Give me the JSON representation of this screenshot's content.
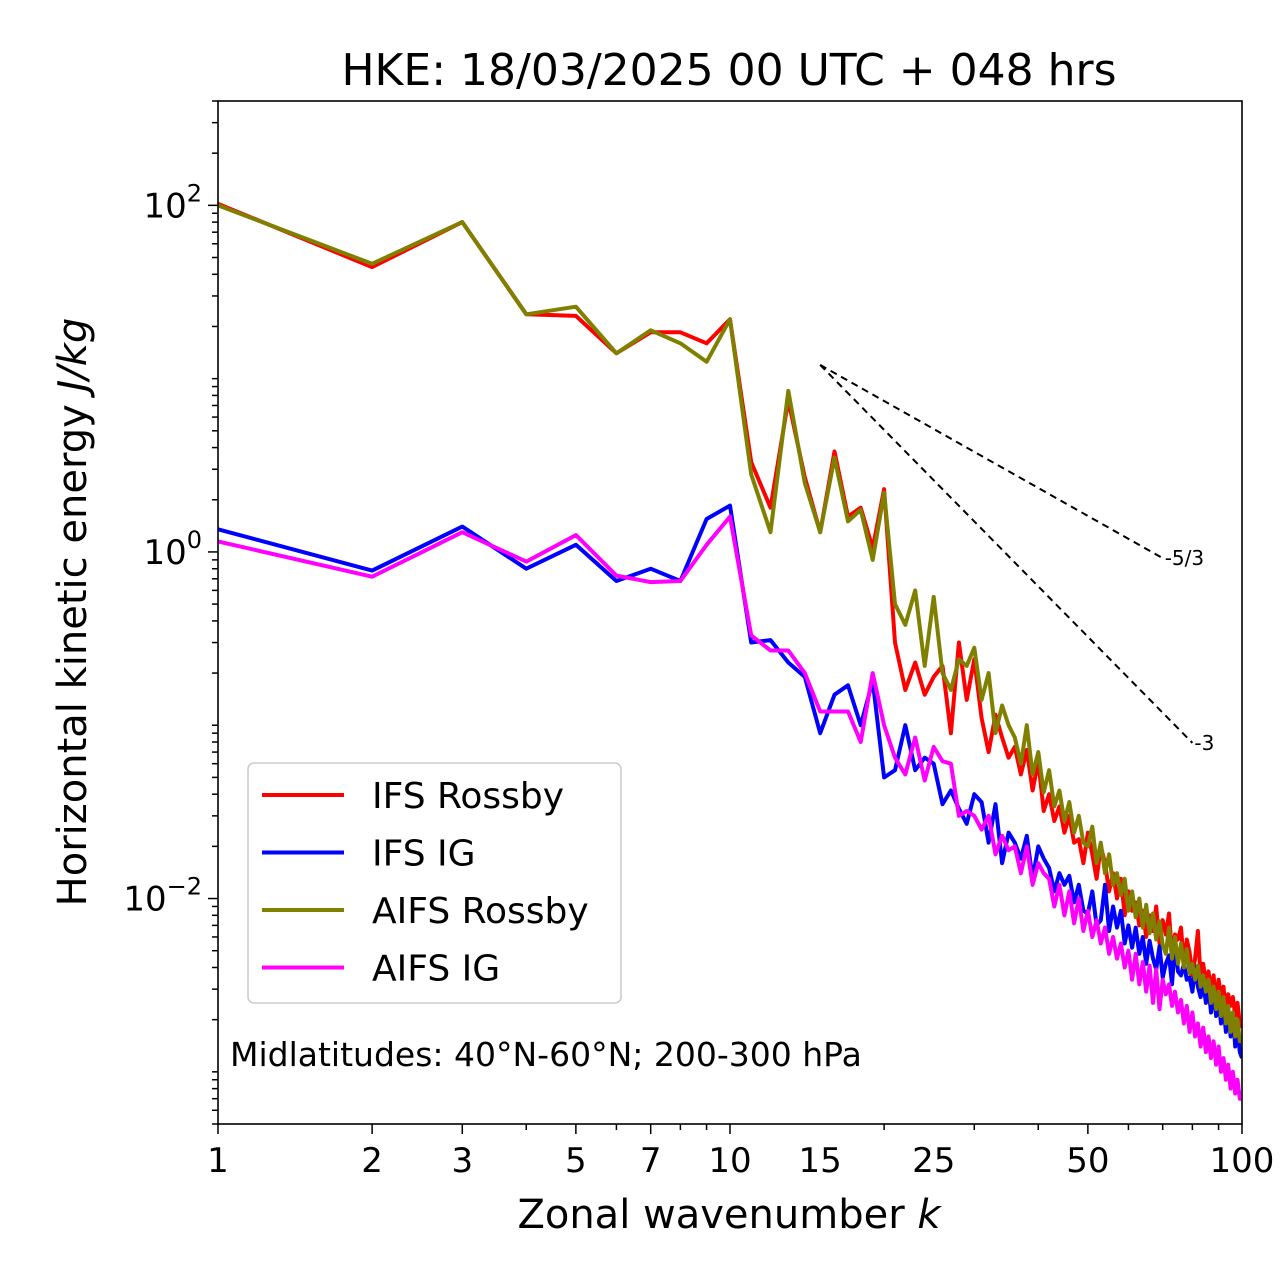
{
  "chart_data": {
    "type": "line",
    "title": "HKE: 18/03/2025 00 UTC + 048 hrs",
    "xlabel": "Zonal wavenumber ",
    "xlabel_italic": "k",
    "ylabel": "Horizontal kinetic energy ",
    "ylabel_italic": "J/kg",
    "xscale": "log",
    "yscale": "log",
    "xlim": [
      1,
      100
    ],
    "ylim": [
      0.0005,
      400
    ],
    "grid": false,
    "legend_position": "lower-left",
    "x_ticks": [
      {
        "value": 1,
        "label": "1"
      },
      {
        "value": 2,
        "label": "2"
      },
      {
        "value": 3,
        "label": "3"
      },
      {
        "value": 5,
        "label": "5"
      },
      {
        "value": 7,
        "label": "7"
      },
      {
        "value": 10,
        "label": "10"
      },
      {
        "value": 15,
        "label": "15"
      },
      {
        "value": 25,
        "label": "25"
      },
      {
        "value": 50,
        "label": "50"
      },
      {
        "value": 100,
        "label": "100"
      }
    ],
    "y_ticks": [
      {
        "value": 100,
        "base": "10",
        "exp": "2"
      },
      {
        "value": 1,
        "base": "10",
        "exp": "0"
      },
      {
        "value": 0.01,
        "base": "10",
        "exp": "−2"
      }
    ],
    "annotation": "Midlatitudes: 40°N-60°N; 200-300 hPa",
    "reference_lines": [
      {
        "label": "-5/3",
        "slope": -1.6667,
        "x": [
          15,
          70
        ],
        "y0": 12
      },
      {
        "label": "-3",
        "slope": -3,
        "x": [
          15,
          80
        ],
        "y0": 12
      }
    ],
    "series": [
      {
        "name": "IFS Rossby",
        "color": "#ff0000",
        "x": [
          1,
          2,
          3,
          4,
          5,
          6,
          7,
          8,
          9,
          10,
          11,
          12,
          13,
          14,
          15,
          16,
          17,
          18,
          19,
          20,
          21,
          22,
          23,
          24,
          25,
          26,
          27,
          28,
          29,
          30,
          31,
          32,
          33,
          34,
          35,
          36,
          37,
          38,
          39,
          40,
          41,
          42,
          43,
          44,
          45,
          46,
          47,
          48,
          49,
          50,
          51,
          52,
          53,
          54,
          55,
          56,
          57,
          58,
          59,
          60,
          61,
          62,
          63,
          64,
          65,
          66,
          67,
          68,
          69,
          70,
          71,
          72,
          73,
          74,
          75,
          76,
          77,
          78,
          79,
          80,
          81,
          82,
          83,
          84,
          85,
          86,
          87,
          88,
          89,
          90,
          91,
          92,
          93,
          94,
          95,
          96,
          97,
          98,
          99,
          100
        ],
        "y": [
          102,
          44,
          80,
          23.5,
          23,
          14,
          18.5,
          18.5,
          16,
          22,
          3.3,
          1.8,
          7.5,
          2.7,
          1.3,
          3.8,
          1.6,
          1.8,
          1.05,
          2.3,
          0.3,
          0.16,
          0.23,
          0.15,
          0.19,
          0.22,
          0.09,
          0.3,
          0.14,
          0.24,
          0.11,
          0.07,
          0.115,
          0.085,
          0.065,
          0.075,
          0.052,
          0.072,
          0.042,
          0.062,
          0.032,
          0.04,
          0.028,
          0.034,
          0.024,
          0.03,
          0.021,
          0.022,
          0.016,
          0.024,
          0.018,
          0.013,
          0.02,
          0.016,
          0.011,
          0.014,
          0.01,
          0.013,
          0.008,
          0.011,
          0.0085,
          0.0095,
          0.007,
          0.0085,
          0.006,
          0.008,
          0.0065,
          0.009,
          0.0055,
          0.0075,
          0.0062,
          0.0082,
          0.0048,
          0.0062,
          0.0058,
          0.0068,
          0.0042,
          0.0058,
          0.0049,
          0.0036,
          0.0045,
          0.0065,
          0.0035,
          0.0042,
          0.0032,
          0.0038,
          0.0029,
          0.0036,
          0.0025,
          0.0034,
          0.0027,
          0.0031,
          0.0022,
          0.0028,
          0.0024,
          0.0027,
          0.0021,
          0.0025,
          0.0019,
          0.0018
        ]
      },
      {
        "name": "IFS IG",
        "color": "#0000ff",
        "x": [
          1,
          2,
          3,
          4,
          5,
          6,
          7,
          8,
          9,
          10,
          11,
          12,
          13,
          14,
          15,
          16,
          17,
          18,
          19,
          20,
          21,
          22,
          23,
          24,
          25,
          26,
          27,
          28,
          29,
          30,
          31,
          32,
          33,
          34,
          35,
          36,
          37,
          38,
          39,
          40,
          41,
          42,
          43,
          44,
          45,
          46,
          47,
          48,
          49,
          50,
          51,
          52,
          53,
          54,
          55,
          56,
          57,
          58,
          59,
          60,
          61,
          62,
          63,
          64,
          65,
          66,
          67,
          68,
          69,
          70,
          71,
          72,
          73,
          74,
          75,
          76,
          77,
          78,
          79,
          80,
          81,
          82,
          83,
          84,
          85,
          86,
          87,
          88,
          89,
          90,
          91,
          92,
          93,
          94,
          95,
          96,
          97,
          98,
          99,
          100
        ],
        "y": [
          1.35,
          0.78,
          1.4,
          0.8,
          1.1,
          0.68,
          0.8,
          0.68,
          1.55,
          1.85,
          0.3,
          0.31,
          0.23,
          0.19,
          0.09,
          0.15,
          0.17,
          0.1,
          0.18,
          0.05,
          0.055,
          0.1,
          0.055,
          0.065,
          0.06,
          0.035,
          0.042,
          0.033,
          0.027,
          0.04,
          0.036,
          0.021,
          0.035,
          0.016,
          0.024,
          0.021,
          0.017,
          0.023,
          0.013,
          0.02,
          0.017,
          0.015,
          0.011,
          0.014,
          0.012,
          0.0135,
          0.0095,
          0.012,
          0.0085,
          0.0082,
          0.011,
          0.007,
          0.0075,
          0.012,
          0.0065,
          0.009,
          0.0068,
          0.0085,
          0.0055,
          0.007,
          0.0052,
          0.0068,
          0.0048,
          0.006,
          0.0042,
          0.0057,
          0.0045,
          0.0039,
          0.0053,
          0.0035,
          0.0042,
          0.0047,
          0.0032,
          0.0055,
          0.0038,
          0.0036,
          0.0042,
          0.0034,
          0.0035,
          0.0029,
          0.004,
          0.0031,
          0.0027,
          0.0033,
          0.0025,
          0.0031,
          0.0022,
          0.0029,
          0.0021,
          0.0026,
          0.0019,
          0.0024,
          0.0017,
          0.0023,
          0.0016,
          0.0022,
          0.0014,
          0.0018,
          0.0013,
          0.0012
        ]
      },
      {
        "name": "AIFS Rossby",
        "color": "#808000",
        "x": [
          1,
          2,
          3,
          4,
          5,
          6,
          7,
          8,
          9,
          10,
          11,
          12,
          13,
          14,
          15,
          16,
          17,
          18,
          19,
          20,
          21,
          22,
          23,
          24,
          25,
          26,
          27,
          28,
          29,
          30,
          31,
          32,
          33,
          34,
          35,
          36,
          37,
          38,
          39,
          40,
          41,
          42,
          43,
          44,
          45,
          46,
          47,
          48,
          49,
          50,
          51,
          52,
          53,
          54,
          55,
          56,
          57,
          58,
          59,
          60,
          61,
          62,
          63,
          64,
          65,
          66,
          67,
          68,
          69,
          70,
          71,
          72,
          73,
          74,
          75,
          76,
          77,
          78,
          79,
          80,
          81,
          82,
          83,
          84,
          85,
          86,
          87,
          88,
          89,
          90,
          91,
          92,
          93,
          94,
          95,
          96,
          97,
          98,
          99,
          100
        ],
        "y": [
          100,
          46,
          80,
          23.5,
          26,
          14,
          19,
          16,
          12.5,
          22,
          2.8,
          1.3,
          8.5,
          2.5,
          1.3,
          3.5,
          1.5,
          1.75,
          0.9,
          2.2,
          0.5,
          0.38,
          0.6,
          0.22,
          0.55,
          0.2,
          0.16,
          0.24,
          0.22,
          0.28,
          0.14,
          0.2,
          0.09,
          0.13,
          0.1,
          0.085,
          0.06,
          0.1,
          0.052,
          0.07,
          0.041,
          0.055,
          0.034,
          0.042,
          0.028,
          0.036,
          0.024,
          0.03,
          0.021,
          0.02,
          0.026,
          0.016,
          0.021,
          0.014,
          0.018,
          0.012,
          0.014,
          0.0105,
          0.013,
          0.0085,
          0.011,
          0.0078,
          0.01,
          0.0068,
          0.0092,
          0.0063,
          0.0082,
          0.0058,
          0.0074,
          0.0054,
          0.0048,
          0.0068,
          0.0045,
          0.006,
          0.0042,
          0.0055,
          0.004,
          0.0051,
          0.0037,
          0.0042,
          0.0034,
          0.0041,
          0.0031,
          0.0036,
          0.0029,
          0.0034,
          0.0025,
          0.0031,
          0.0023,
          0.0029,
          0.0021,
          0.0027,
          0.0019,
          0.0024,
          0.0017,
          0.0022,
          0.0016,
          0.002,
          0.0015,
          0.0015
        ]
      },
      {
        "name": "AIFS IG",
        "color": "#ff00ff",
        "x": [
          1,
          2,
          3,
          4,
          5,
          6,
          7,
          8,
          9,
          10,
          11,
          12,
          13,
          14,
          15,
          16,
          17,
          18,
          19,
          20,
          21,
          22,
          23,
          24,
          25,
          26,
          27,
          28,
          29,
          30,
          31,
          32,
          33,
          34,
          35,
          36,
          37,
          38,
          39,
          40,
          41,
          42,
          43,
          44,
          45,
          46,
          47,
          48,
          49,
          50,
          51,
          52,
          53,
          54,
          55,
          56,
          57,
          58,
          59,
          60,
          61,
          62,
          63,
          64,
          65,
          66,
          67,
          68,
          69,
          70,
          71,
          72,
          73,
          74,
          75,
          76,
          77,
          78,
          79,
          80,
          81,
          82,
          83,
          84,
          85,
          86,
          87,
          88,
          89,
          90,
          91,
          92,
          93,
          94,
          95,
          96,
          97,
          98,
          99,
          100
        ],
        "y": [
          1.15,
          0.72,
          1.3,
          0.88,
          1.25,
          0.73,
          0.67,
          0.68,
          1.1,
          1.6,
          0.33,
          0.27,
          0.27,
          0.2,
          0.12,
          0.12,
          0.12,
          0.08,
          0.2,
          0.1,
          0.065,
          0.052,
          0.085,
          0.048,
          0.075,
          0.062,
          0.06,
          0.03,
          0.032,
          0.03,
          0.025,
          0.03,
          0.018,
          0.023,
          0.019,
          0.02,
          0.014,
          0.02,
          0.012,
          0.016,
          0.014,
          0.013,
          0.009,
          0.012,
          0.008,
          0.011,
          0.0072,
          0.01,
          0.0065,
          0.0085,
          0.006,
          0.0075,
          0.0055,
          0.0068,
          0.0048,
          0.006,
          0.0045,
          0.0055,
          0.004,
          0.005,
          0.0034,
          0.0048,
          0.0032,
          0.0043,
          0.0029,
          0.0041,
          0.0025,
          0.0039,
          0.0023,
          0.0034,
          0.0028,
          0.0032,
          0.0024,
          0.0029,
          0.0022,
          0.0026,
          0.0019,
          0.0024,
          0.0017,
          0.0022,
          0.0016,
          0.0019,
          0.0014,
          0.0018,
          0.0013,
          0.0016,
          0.0012,
          0.0015,
          0.0011,
          0.0014,
          0.001,
          0.0012,
          0.0009,
          0.0011,
          0.0008,
          0.001,
          0.00075,
          0.0009,
          0.0007,
          0.0007
        ]
      }
    ]
  }
}
